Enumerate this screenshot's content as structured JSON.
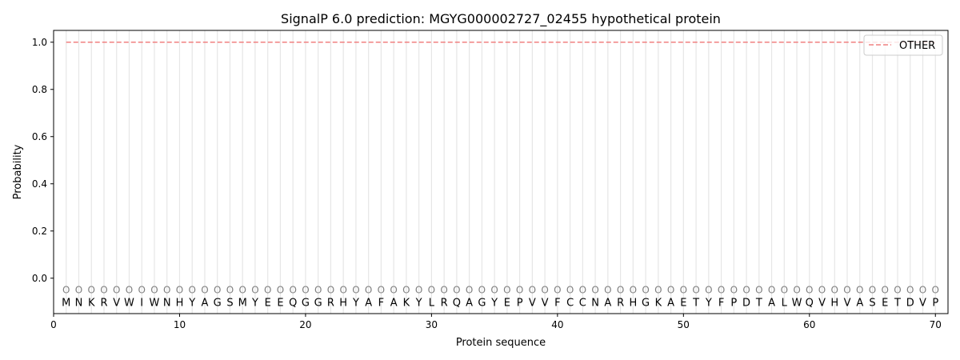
{
  "chart_data": {
    "type": "line",
    "title": "SignalP 6.0 prediction: MGYG000002727_02455 hypothetical protein",
    "xlabel": "Protein sequence",
    "ylabel": "Probability",
    "xlim": [
      0,
      71
    ],
    "ylim": [
      -0.15,
      1.05
    ],
    "xticks": [
      0,
      10,
      20,
      30,
      40,
      50,
      60,
      70
    ],
    "yticks": [
      0.0,
      0.2,
      0.4,
      0.6,
      0.8,
      1.0
    ],
    "legend_position": "top-right",
    "sequence": "MNKRVWIWNHYAGSMYEEQGGRHYAFAKYLRQAGYEPVVFCCNARHGKAETYFPDTALWQVHVASETDVP",
    "residue_label": "O",
    "series": [
      {
        "name": "OTHER",
        "color": "#f08080",
        "style": "dashed",
        "x_start": 1,
        "x_end": 70,
        "value": 1.0
      }
    ]
  }
}
